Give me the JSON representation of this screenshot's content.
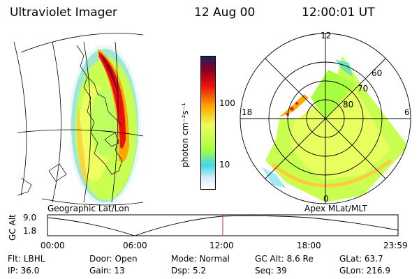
{
  "header": {
    "instrument": "Ultraviolet Imager",
    "date": "12 Aug 00",
    "time": "12:00:01 UT"
  },
  "left_panel": {
    "caption": "Geographic Lat/Lon"
  },
  "right_panel": {
    "caption": "Apex MLat/MLT",
    "mlt_labels": [
      "12",
      "18",
      "6",
      "0"
    ],
    "lat_labels": [
      "60",
      "70",
      "80"
    ]
  },
  "colorbar": {
    "unit_label": "photon cm⁻²s⁻¹",
    "ticks": [
      "100",
      "10"
    ],
    "colors": [
      "#ffffff",
      "#d8eef8",
      "#40d8e0",
      "#a8ff40",
      "#e8ff60",
      "#ffa800",
      "#e81010",
      "#8b0020",
      "#202060"
    ]
  },
  "timeline": {
    "ylabel": "GC Alt",
    "yticks": [
      "9.0",
      "1.8"
    ],
    "xticks": [
      "00:00",
      "06:00",
      "12:00",
      "18:00",
      "23:59"
    ],
    "current_time_fraction": 0.5,
    "marker_color": "#c03040"
  },
  "status": {
    "row1": [
      {
        "key": "Flt:",
        "value": "LBHL"
      },
      {
        "key": "Door:",
        "value": "Open"
      },
      {
        "key": "Mode:",
        "value": "Normal"
      },
      {
        "key": "GC Alt:",
        "value": "8.6 Re"
      },
      {
        "key": "GLat:",
        "value": "63.7"
      }
    ],
    "row2": [
      {
        "key": "IP:",
        "value": "36.0"
      },
      {
        "key": "Gain:",
        "value": "13"
      },
      {
        "key": "Dsp:",
        "value": "5.2"
      },
      {
        "key": "Seq:",
        "value": "39"
      },
      {
        "key": "GLon:",
        "value": "216.9"
      }
    ]
  }
}
